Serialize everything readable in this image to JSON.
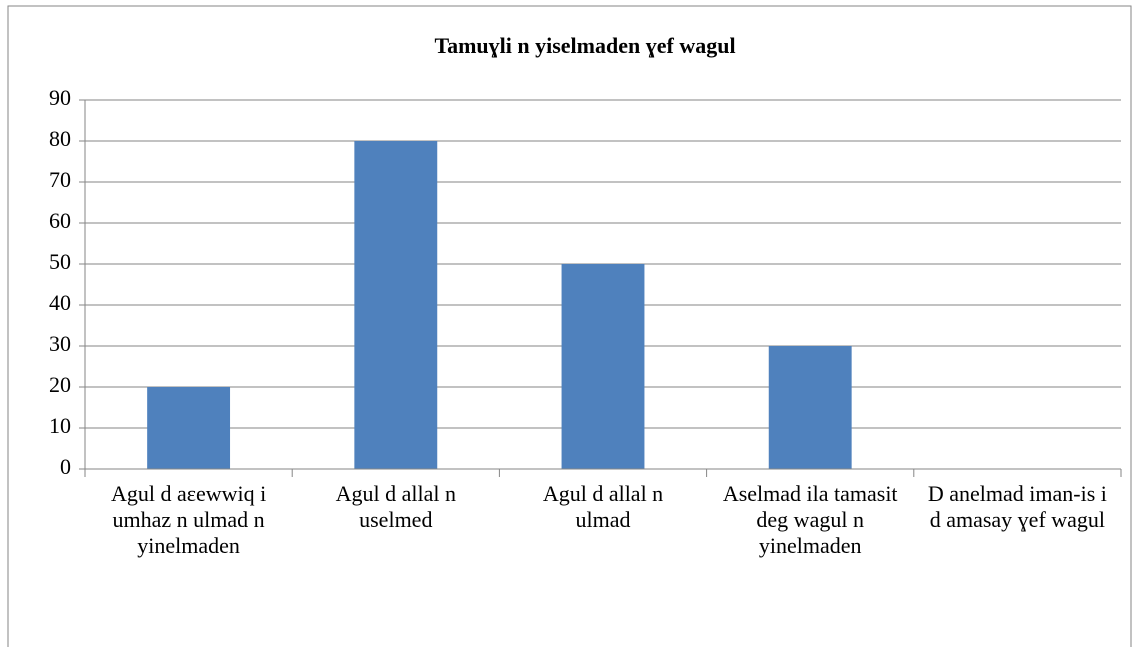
{
  "chart_data": {
    "type": "bar",
    "title": "Tamuɣli n yiselmaden ɣef wagul",
    "categories": [
      "Agul d aεewwiq i umhaz n ulmad n yinelmaden",
      "Agul d allal n uselmed",
      "Agul d allal n ulmad",
      "Aselmad ila tamasit deg wagul n yinelmaden",
      "D anelmad iman-is i d amasay ɣef wagul"
    ],
    "values": [
      20,
      80,
      50,
      30,
      0
    ],
    "color": "#4f81bd",
    "ylim": [
      0,
      90
    ],
    "yticks": [
      0,
      10,
      20,
      30,
      40,
      50,
      60,
      70,
      80,
      90
    ],
    "grid": true
  }
}
